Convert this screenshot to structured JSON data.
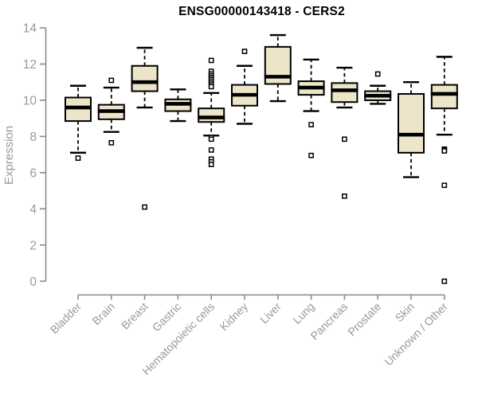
{
  "chart_data": {
    "type": "boxplot",
    "title": "ENSG00000143418 - CERS2",
    "ylabel": "Expression",
    "ylim": [
      0,
      14
    ],
    "yticks": [
      0,
      2,
      4,
      6,
      8,
      10,
      12,
      14
    ],
    "grid": false,
    "legend": "none",
    "categories": [
      "Bladder",
      "Brain",
      "Breast",
      "Gastric",
      "Hematopoietic cells",
      "Kidney",
      "Liver",
      "Lung",
      "Pancreas",
      "Prostate",
      "Skin",
      "Unknown / Other"
    ],
    "series": [
      {
        "category": "Bladder",
        "low": 7.1,
        "q1": 8.85,
        "median": 9.6,
        "q3": 10.15,
        "high": 10.8,
        "outliers": [
          6.8
        ]
      },
      {
        "category": "Brain",
        "low": 8.25,
        "q1": 8.95,
        "median": 9.4,
        "q3": 9.75,
        "high": 10.7,
        "outliers": [
          11.1,
          7.65
        ]
      },
      {
        "category": "Breast",
        "low": 9.6,
        "q1": 10.5,
        "median": 11.0,
        "q3": 11.9,
        "high": 12.9,
        "outliers": [
          4.1
        ]
      },
      {
        "category": "Gastric",
        "low": 8.85,
        "q1": 9.4,
        "median": 9.8,
        "q3": 10.05,
        "high": 10.6,
        "outliers": []
      },
      {
        "category": "Hematopoietic cells",
        "low": 8.05,
        "q1": 8.8,
        "median": 9.05,
        "q3": 9.55,
        "high": 10.4,
        "outliers": [
          12.2,
          11.6,
          11.45,
          11.35,
          11.25,
          11.15,
          11.05,
          10.95,
          10.85,
          10.75,
          7.95,
          7.85,
          7.25,
          6.75,
          6.6,
          6.45
        ]
      },
      {
        "category": "Kidney",
        "low": 8.7,
        "q1": 9.7,
        "median": 10.3,
        "q3": 10.85,
        "high": 11.9,
        "outliers": [
          12.7
        ]
      },
      {
        "category": "Liver",
        "low": 9.95,
        "q1": 10.9,
        "median": 11.3,
        "q3": 12.95,
        "high": 13.6,
        "outliers": []
      },
      {
        "category": "Lung",
        "low": 9.4,
        "q1": 10.3,
        "median": 10.7,
        "q3": 11.05,
        "high": 12.25,
        "outliers": [
          8.65,
          6.95
        ]
      },
      {
        "category": "Pancreas",
        "low": 9.6,
        "q1": 9.9,
        "median": 10.55,
        "q3": 10.95,
        "high": 11.8,
        "outliers": [
          7.85,
          4.7
        ]
      },
      {
        "category": "Prostate",
        "low": 9.8,
        "q1": 10.0,
        "median": 10.25,
        "q3": 10.5,
        "high": 10.8,
        "outliers": [
          11.45
        ]
      },
      {
        "category": "Skin",
        "low": 5.75,
        "q1": 7.1,
        "median": 8.1,
        "q3": 10.35,
        "high": 11.0,
        "outliers": []
      },
      {
        "category": "Unknown / Other",
        "low": 8.1,
        "q1": 9.55,
        "median": 10.35,
        "q3": 10.85,
        "high": 12.4,
        "outliers": [
          7.3,
          7.25,
          7.2,
          5.3,
          0.0
        ]
      }
    ],
    "colors": {
      "box_fill": "#ECE5C9",
      "box_border": "#000000",
      "median": "#000000",
      "axis": "#8A8A8A",
      "text": "#999999",
      "title": "#000000",
      "background": "#FFFFFF"
    }
  }
}
